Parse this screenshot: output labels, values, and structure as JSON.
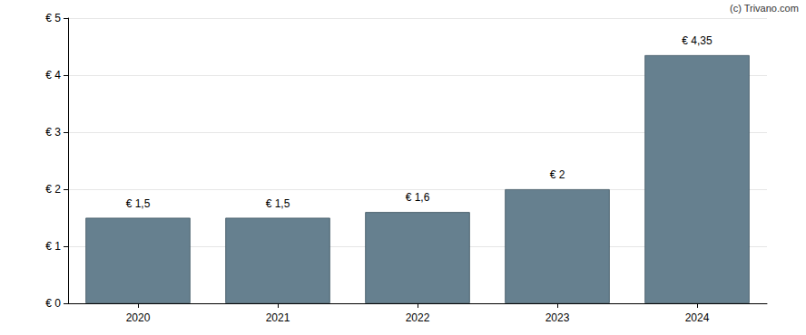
{
  "chart_data": {
    "type": "bar",
    "annotation": "(c) Trivano.com",
    "categories": [
      "2020",
      "2021",
      "2022",
      "2023",
      "2024"
    ],
    "values": [
      1.5,
      1.5,
      1.6,
      2,
      4.35
    ],
    "value_labels": [
      "€ 1,5",
      "€ 1,5",
      "€ 1,6",
      "€ 2",
      "€ 4,35"
    ],
    "data_labels": true,
    "color": "#66808f",
    "ylim": [
      0,
      5
    ],
    "yticks": [
      {
        "value": 0,
        "label": "€ 0"
      },
      {
        "value": 1,
        "label": "€ 1"
      },
      {
        "value": 2,
        "label": "€ 2"
      },
      {
        "value": 3,
        "label": "€ 3"
      },
      {
        "value": 4,
        "label": "€ 4"
      },
      {
        "value": 5,
        "label": "€ 5"
      }
    ],
    "grid": true
  }
}
